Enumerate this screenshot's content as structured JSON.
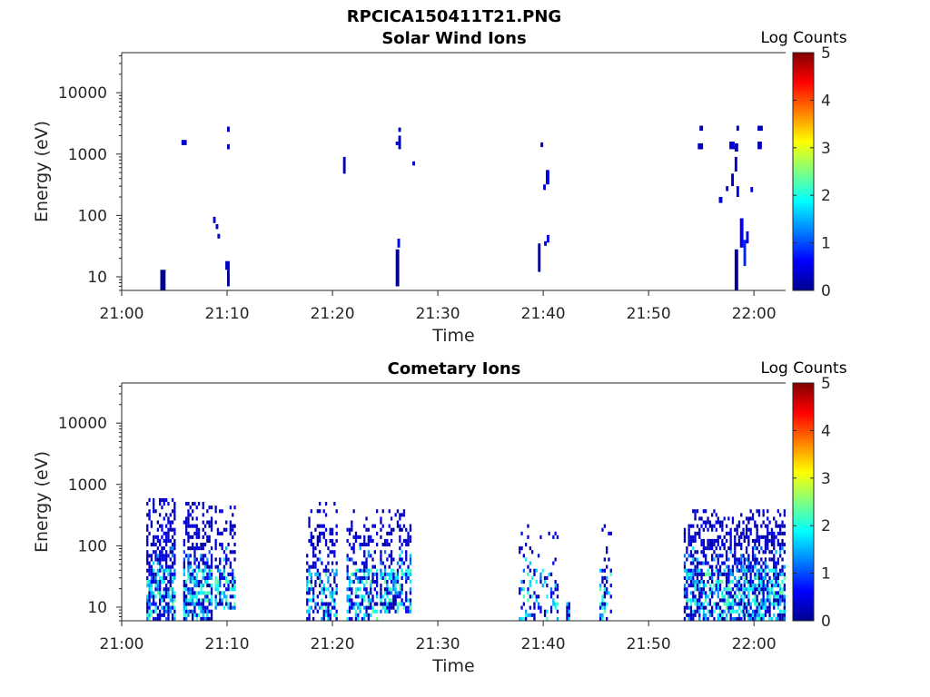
{
  "figure_title": "RPCICA150411T21.PNG",
  "chart_data": [
    {
      "type": "heatmap",
      "title": "Solar Wind Ions",
      "xlabel": "Time",
      "ylabel": "Energy (eV)",
      "x_ticks": [
        "21:00",
        "21:10",
        "21:20",
        "21:30",
        "21:40",
        "21:50",
        "22:00"
      ],
      "y_ticks": [
        "10",
        "100",
        "1000",
        "10000"
      ],
      "y_scale": "log",
      "xlim": [
        "21:00",
        "22:03"
      ],
      "ylim": [
        6,
        45000
      ],
      "colorbar": {
        "title": "Log Counts",
        "ticks": [
          "0",
          "1",
          "2",
          "3",
          "4",
          "5"
        ],
        "range": [
          0,
          5
        ],
        "colormap": "jet"
      },
      "cells": [
        {
          "t0": "21:03:40",
          "t1": "21:04:10",
          "e0": 6,
          "e1": 13,
          "v": 0.1
        },
        {
          "t0": "21:05:40",
          "t1": "21:06:10",
          "e0": 1400,
          "e1": 1700,
          "v": 0.3
        },
        {
          "t0": "21:08:40",
          "t1": "21:08:55",
          "e0": 75,
          "e1": 95,
          "v": 0.4
        },
        {
          "t0": "21:08:55",
          "t1": "21:09:10",
          "e0": 60,
          "e1": 72,
          "v": 0.4
        },
        {
          "t0": "21:09:05",
          "t1": "21:09:20",
          "e0": 42,
          "e1": 50,
          "v": 0.4
        },
        {
          "t0": "21:09:50",
          "t1": "21:10:15",
          "e0": 13,
          "e1": 18,
          "v": 0.3
        },
        {
          "t0": "21:10:00",
          "t1": "21:10:15",
          "e0": 7,
          "e1": 13,
          "v": 0.1
        },
        {
          "t0": "21:10:00",
          "t1": "21:10:15",
          "e0": 2300,
          "e1": 2800,
          "v": 0.3
        },
        {
          "t0": "21:10:00",
          "t1": "21:10:15",
          "e0": 1200,
          "e1": 1450,
          "v": 0.3
        },
        {
          "t0": "21:21:00",
          "t1": "21:21:15",
          "e0": 480,
          "e1": 900,
          "v": 0.2
        },
        {
          "t0": "21:26:00",
          "t1": "21:26:20",
          "e0": 7,
          "e1": 28,
          "v": 0.1
        },
        {
          "t0": "21:26:10",
          "t1": "21:26:25",
          "e0": 30,
          "e1": 42,
          "v": 0.5
        },
        {
          "t0": "21:26:00",
          "t1": "21:26:15",
          "e0": 1400,
          "e1": 1600,
          "v": 0.3
        },
        {
          "t0": "21:26:15",
          "t1": "21:26:30",
          "e0": 1200,
          "e1": 2000,
          "v": 0.3
        },
        {
          "t0": "21:26:15",
          "t1": "21:26:30",
          "e0": 2300,
          "e1": 2700,
          "v": 0.3
        },
        {
          "t0": "21:27:35",
          "t1": "21:27:50",
          "e0": 650,
          "e1": 760,
          "v": 0.3
        },
        {
          "t0": "21:39:30",
          "t1": "21:39:45",
          "e0": 12,
          "e1": 35,
          "v": 0.1
        },
        {
          "t0": "21:39:45",
          "t1": "21:40:00",
          "e0": 1300,
          "e1": 1550,
          "v": 0.3
        },
        {
          "t0": "21:40:00",
          "t1": "21:40:15",
          "e0": 260,
          "e1": 320,
          "v": 0.4
        },
        {
          "t0": "21:40:15",
          "t1": "21:40:35",
          "e0": 320,
          "e1": 550,
          "v": 0.5
        },
        {
          "t0": "21:40:20",
          "t1": "21:40:35",
          "e0": 36,
          "e1": 48,
          "v": 0.5
        },
        {
          "t0": "21:40:05",
          "t1": "21:40:20",
          "e0": 32,
          "e1": 38,
          "v": 0.4
        },
        {
          "t0": "21:54:50",
          "t1": "21:55:10",
          "e0": 2400,
          "e1": 2900,
          "v": 0.3
        },
        {
          "t0": "21:54:40",
          "t1": "21:55:10",
          "e0": 1200,
          "e1": 1500,
          "v": 0.3
        },
        {
          "t0": "21:57:40",
          "t1": "21:58:10",
          "e0": 1200,
          "e1": 1600,
          "v": 0.4
        },
        {
          "t0": "21:58:10",
          "t1": "21:58:30",
          "e0": 1100,
          "e1": 1500,
          "v": 0.3
        },
        {
          "t0": "21:58:20",
          "t1": "21:58:35",
          "e0": 2400,
          "e1": 2900,
          "v": 0.3
        },
        {
          "t0": "21:58:10",
          "t1": "21:58:25",
          "e0": 520,
          "e1": 900,
          "v": 0.3
        },
        {
          "t0": "21:57:50",
          "t1": "21:58:05",
          "e0": 300,
          "e1": 480,
          "v": 0.3
        },
        {
          "t0": "21:57:20",
          "t1": "21:57:35",
          "e0": 250,
          "e1": 300,
          "v": 0.4
        },
        {
          "t0": "21:58:20",
          "t1": "21:58:35",
          "e0": 200,
          "e1": 300,
          "v": 0.5
        },
        {
          "t0": "21:59:40",
          "t1": "21:59:55",
          "e0": 240,
          "e1": 290,
          "v": 0.4
        },
        {
          "t0": "21:56:40",
          "t1": "21:57:00",
          "e0": 160,
          "e1": 200,
          "v": 0.4
        },
        {
          "t0": "21:58:10",
          "t1": "21:58:30",
          "e0": 6,
          "e1": 28,
          "v": 0.1
        },
        {
          "t0": "21:58:40",
          "t1": "21:59:00",
          "e0": 30,
          "e1": 90,
          "v": 0.6
        },
        {
          "t0": "21:59:00",
          "t1": "21:59:15",
          "e0": 15,
          "e1": 40,
          "v": 0.8
        },
        {
          "t0": "21:59:15",
          "t1": "21:59:30",
          "e0": 35,
          "e1": 55,
          "v": 0.5
        },
        {
          "t0": "22:00:20",
          "t1": "22:00:45",
          "e0": 1200,
          "e1": 1600,
          "v": 0.3
        },
        {
          "t0": "22:00:20",
          "t1": "22:00:50",
          "e0": 2400,
          "e1": 2900,
          "v": 0.3
        }
      ]
    },
    {
      "type": "heatmap",
      "title": "Cometary Ions",
      "xlabel": "Time",
      "ylabel": "Energy (eV)",
      "x_ticks": [
        "21:00",
        "21:10",
        "21:20",
        "21:30",
        "21:40",
        "21:50",
        "22:00"
      ],
      "y_ticks": [
        "10",
        "100",
        "1000",
        "10000"
      ],
      "y_scale": "log",
      "xlim": [
        "21:00",
        "22:03"
      ],
      "ylim": [
        6,
        45000
      ],
      "colorbar": {
        "title": "Log Counts",
        "ticks": [
          "0",
          "1",
          "2",
          "3",
          "4",
          "5"
        ],
        "range": [
          0,
          5
        ],
        "colormap": "jet"
      },
      "bursts": [
        {
          "t0": "21:02:20",
          "t1": "21:05:00",
          "emin": 6,
          "emax": 600,
          "density": 0.55,
          "seed": 11
        },
        {
          "t0": "21:05:50",
          "t1": "21:08:30",
          "emin": 6,
          "emax": 560,
          "density": 0.5,
          "seed": 23
        },
        {
          "t0": "21:08:50",
          "t1": "21:10:50",
          "emin": 8,
          "emax": 500,
          "density": 0.35,
          "seed": 37
        },
        {
          "t0": "21:17:30",
          "t1": "21:20:30",
          "emin": 6,
          "emax": 550,
          "density": 0.3,
          "seed": 41
        },
        {
          "t0": "21:21:20",
          "t1": "21:24:20",
          "emin": 6,
          "emax": 420,
          "density": 0.3,
          "seed": 53
        },
        {
          "t0": "21:24:30",
          "t1": "21:27:30",
          "emin": 7,
          "emax": 400,
          "density": 0.38,
          "seed": 67
        },
        {
          "t0": "21:37:40",
          "t1": "21:41:20",
          "emin": 6,
          "emax": 500,
          "density": 0.08,
          "seed": 71
        },
        {
          "t0": "21:42:10",
          "t1": "21:42:30",
          "emin": 6,
          "emax": 13,
          "density": 1.0,
          "seed": 73
        },
        {
          "t0": "21:45:20",
          "t1": "21:46:30",
          "emin": 6,
          "emax": 400,
          "density": 0.08,
          "seed": 79
        },
        {
          "t0": "21:53:20",
          "t1": "21:56:30",
          "emin": 6,
          "emax": 420,
          "density": 0.45,
          "seed": 83
        },
        {
          "t0": "21:56:30",
          "t1": "21:59:00",
          "emin": 6,
          "emax": 350,
          "density": 0.45,
          "seed": 97
        },
        {
          "t0": "21:59:00",
          "t1": "22:02:50",
          "emin": 6,
          "emax": 400,
          "density": 0.5,
          "seed": 101
        }
      ]
    }
  ]
}
